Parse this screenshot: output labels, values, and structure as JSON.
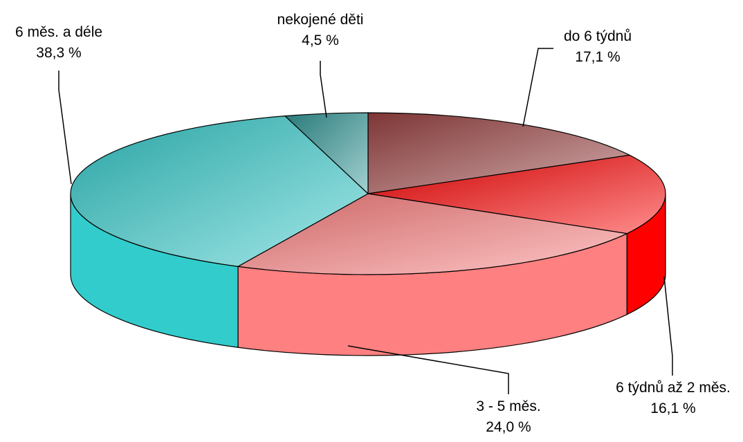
{
  "chart_data": {
    "type": "pie",
    "style": "3d-exploded-none",
    "slices": [
      {
        "label": "do 6 týdnů",
        "value_text": "17,1 %",
        "value": 17.1,
        "color": "#9E4444"
      },
      {
        "label": "6 týdnů až  2 měs.",
        "value_text": "16,1 %",
        "value": 16.1,
        "color": "#FF0000"
      },
      {
        "label": "3 - 5 měs.",
        "value_text": "24,0 %",
        "value": 24.0,
        "color": "#FF8080"
      },
      {
        "label": "6 měs. a déle",
        "value_text": "38,3 %",
        "value": 38.3,
        "color": "#33CCCC"
      },
      {
        "label": "nekojené děti",
        "value_text": "4,5 %",
        "value": 4.5,
        "color": "#339999"
      }
    ]
  }
}
